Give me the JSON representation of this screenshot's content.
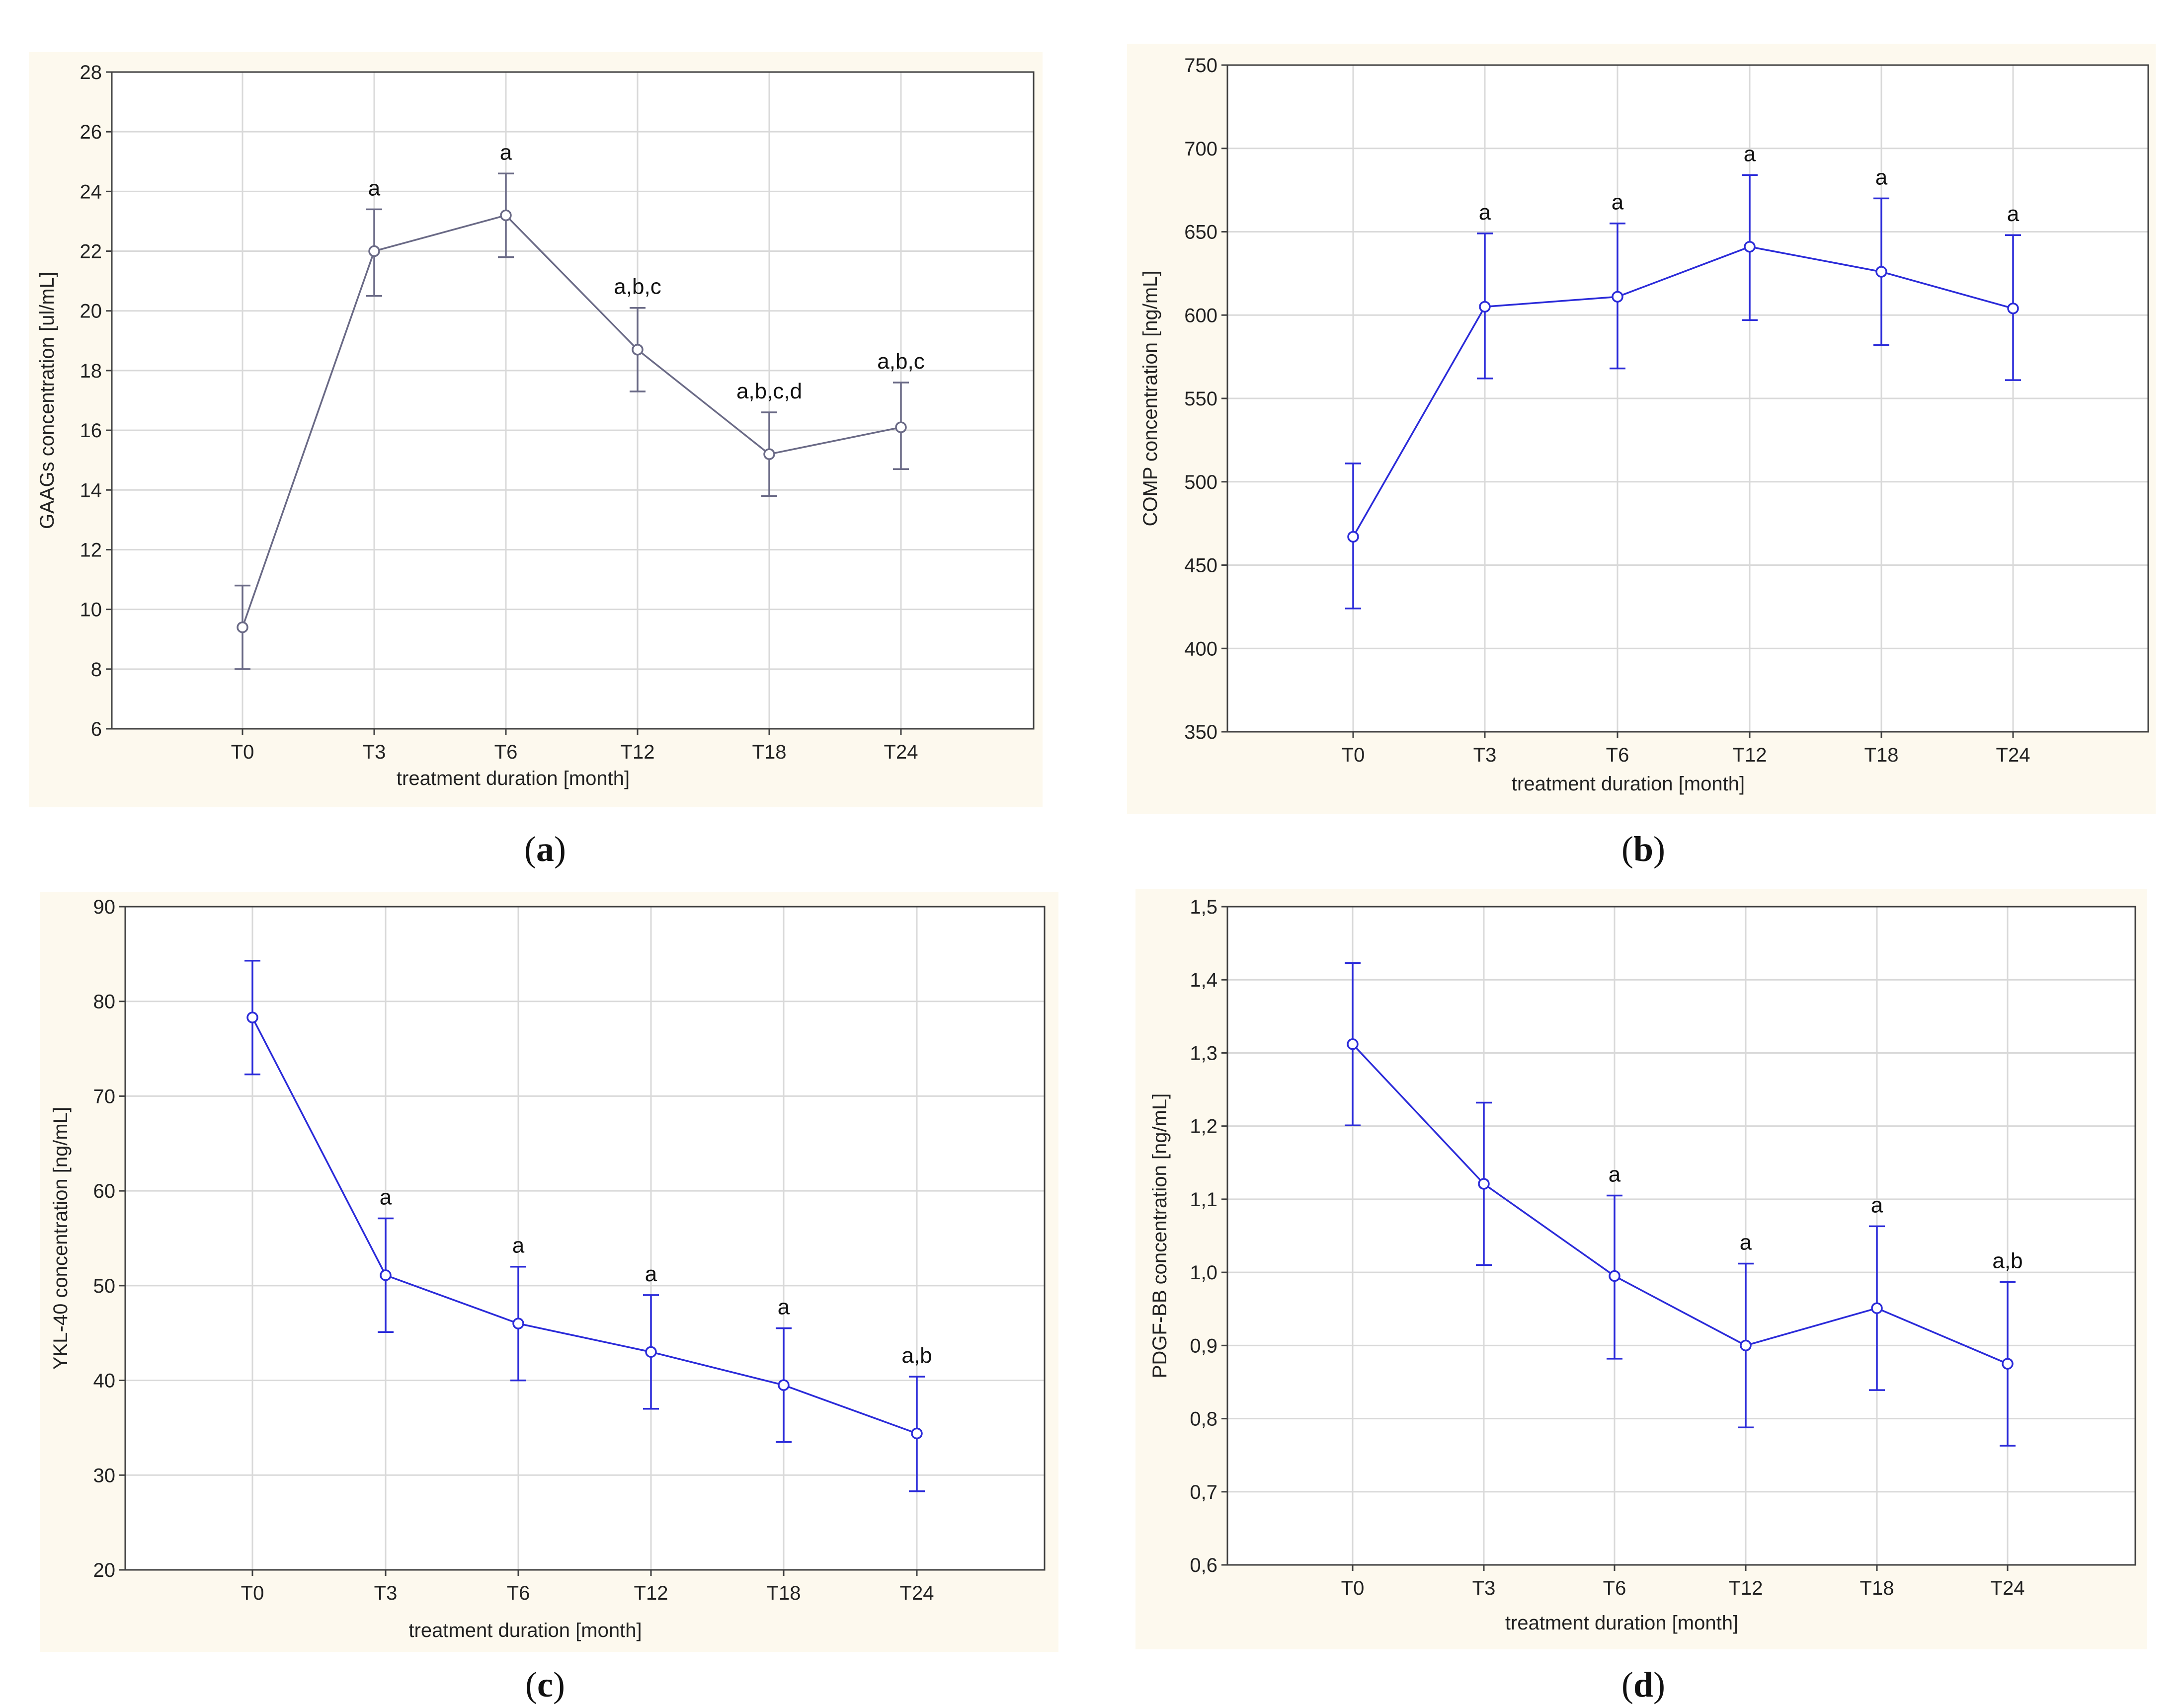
{
  "colors": {
    "panel_bg": "#fdf9ee",
    "plot_bg": "#ffffff",
    "grid": "#d9d9d9",
    "gray_series": "#6a6a86",
    "blue_series": "#2b2bd9",
    "axis": "#404040"
  },
  "chart_data": [
    {
      "id": "a",
      "type": "line",
      "caption": "a",
      "ylabel": "GAAGs concentration [ul/mL]",
      "xlabel": "treatment duration [month]",
      "categories": [
        "T0",
        "T3",
        "T6",
        "T12",
        "T18",
        "T24"
      ],
      "ylim": [
        6,
        28
      ],
      "yticks": [
        "6",
        "8",
        "10",
        "12",
        "14",
        "16",
        "18",
        "20",
        "22",
        "24",
        "26",
        "28"
      ],
      "ytick_values": [
        6,
        8,
        10,
        12,
        14,
        16,
        18,
        20,
        22,
        24,
        26,
        28
      ],
      "series_color": "gray",
      "values": [
        9.4,
        22.0,
        23.2,
        18.7,
        15.2,
        16.1
      ],
      "err_low": [
        8.0,
        20.5,
        21.8,
        17.3,
        13.8,
        14.7
      ],
      "err_high": [
        10.8,
        23.4,
        24.6,
        20.1,
        16.6,
        17.6
      ],
      "annotations": [
        "",
        "a",
        "a",
        "a,b,c",
        "a,b,c,d",
        "a,b,c"
      ]
    },
    {
      "id": "b",
      "type": "line",
      "caption": "b",
      "ylabel": "COMP concentration [ng/mL]",
      "xlabel": "treatment duration [month]",
      "categories": [
        "T0",
        "T3",
        "T6",
        "T12",
        "T18",
        "T24"
      ],
      "ylim": [
        350,
        750
      ],
      "yticks": [
        "350",
        "400",
        "450",
        "500",
        "550",
        "600",
        "650",
        "700",
        "750"
      ],
      "ytick_values": [
        350,
        400,
        450,
        500,
        550,
        600,
        650,
        700,
        750
      ],
      "series_color": "blue",
      "values": [
        467,
        605,
        611,
        641,
        626,
        604
      ],
      "err_low": [
        424,
        562,
        568,
        597,
        582,
        561
      ],
      "err_high": [
        511,
        649,
        655,
        684,
        670,
        648
      ],
      "annotations": [
        "",
        "a",
        "a",
        "a",
        "a",
        "a"
      ]
    },
    {
      "id": "c",
      "type": "line",
      "caption": "c",
      "ylabel": "YKL-40 concentration [ng/mL]",
      "xlabel": "treatment duration [month]",
      "categories": [
        "T0",
        "T3",
        "T6",
        "T12",
        "T18",
        "T24"
      ],
      "ylim": [
        20,
        90
      ],
      "yticks": [
        "20",
        "30",
        "40",
        "50",
        "60",
        "70",
        "80",
        "90"
      ],
      "ytick_values": [
        20,
        30,
        40,
        50,
        60,
        70,
        80,
        90
      ],
      "series_color": "blue",
      "values": [
        78.3,
        51.1,
        46.0,
        43.0,
        39.5,
        34.4
      ],
      "err_low": [
        72.3,
        45.1,
        40.0,
        37.0,
        33.5,
        28.3
      ],
      "err_high": [
        84.3,
        57.1,
        52.0,
        49.0,
        45.5,
        40.4
      ],
      "annotations": [
        "",
        "a",
        "a",
        "a",
        "a",
        "a,b"
      ]
    },
    {
      "id": "d",
      "type": "line",
      "caption": "d",
      "ylabel": "PDGF-BB concentration [ng/mL]",
      "xlabel": "treatment duration [month]",
      "categories": [
        "T0",
        "T3",
        "T6",
        "T12",
        "T18",
        "T24"
      ],
      "ylim": [
        0.6,
        1.5
      ],
      "yticks": [
        "0,6",
        "0,7",
        "0,8",
        "0,9",
        "1,0",
        "1,1",
        "1,2",
        "1,3",
        "1,4",
        "1,5"
      ],
      "ytick_values": [
        0.6,
        0.7,
        0.8,
        0.9,
        1.0,
        1.1,
        1.2,
        1.3,
        1.4,
        1.5
      ],
      "series_color": "blue",
      "values": [
        1.312,
        1.121,
        0.995,
        0.9,
        0.951,
        0.875
      ],
      "err_low": [
        1.201,
        1.01,
        0.882,
        0.788,
        0.839,
        0.763
      ],
      "err_high": [
        1.423,
        1.232,
        1.105,
        1.012,
        1.063,
        0.987
      ],
      "annotations": [
        "",
        "",
        "a",
        "a",
        "a",
        "a,b"
      ]
    }
  ]
}
